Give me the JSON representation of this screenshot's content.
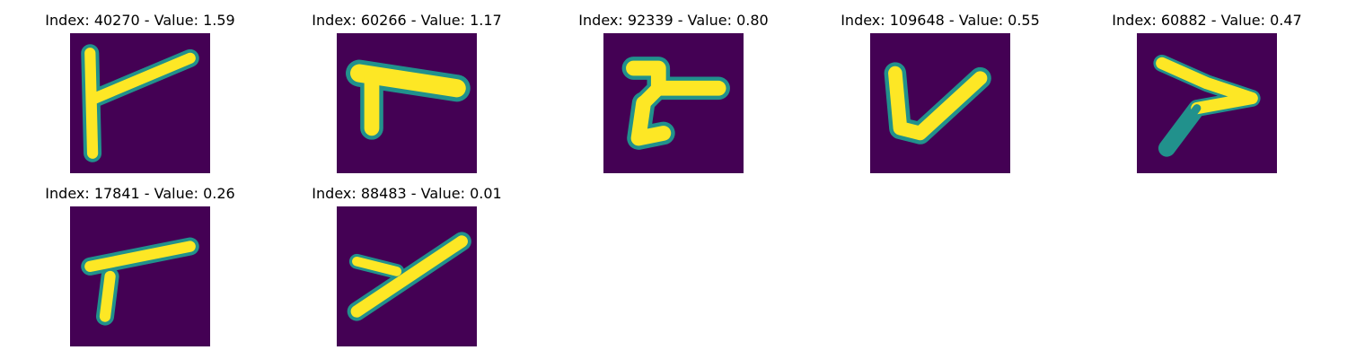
{
  "colors": {
    "background": "#440154",
    "mid": "#21918c",
    "foreground": "#fde725"
  },
  "panels": [
    {
      "index": 40270,
      "value": "1.59",
      "title": "Index: 40270 - Value: 1.59",
      "glyph": "y-shape"
    },
    {
      "index": 60266,
      "value": "1.17",
      "title": "Index: 60266 - Value: 1.17",
      "glyph": "t-shape"
    },
    {
      "index": 92339,
      "value": "0.80",
      "title": "Index: 92339 - Value: 0.80",
      "glyph": "t-shape"
    },
    {
      "index": 109648,
      "value": "0.55",
      "title": "Index: 109648 - Value: 0.55",
      "glyph": "v-shape"
    },
    {
      "index": 60882,
      "value": "0.47",
      "title": "Index: 60882 - Value: 0.47",
      "glyph": "arrow-shape"
    },
    {
      "index": 17841,
      "value": "0.26",
      "title": "Index: 17841 - Value: 0.26",
      "glyph": "t-shape"
    },
    {
      "index": 88483,
      "value": "0.01",
      "title": "Index: 88483 - Value: 0.01",
      "glyph": "y-shape"
    }
  ]
}
